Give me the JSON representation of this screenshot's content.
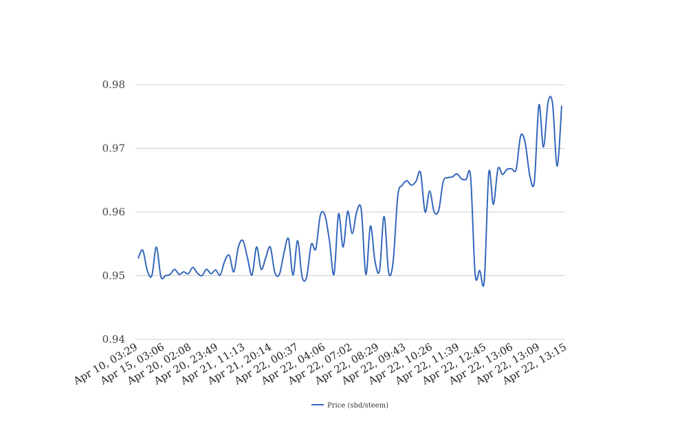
{
  "chart_data": {
    "type": "line",
    "title": "",
    "xlabel": "",
    "ylabel": "",
    "ylim": [
      0.94,
      0.98
    ],
    "yticks": [
      0.94,
      0.95,
      0.96,
      0.97,
      0.98
    ],
    "ytick_labels": [
      "0.94",
      "0.95",
      "0.96",
      "0.97",
      "0.98"
    ],
    "grid": "horizontal",
    "legend_position": "bottom-center",
    "x_tick_labels": [
      "Apr 10, 03:29",
      "Apr 15, 03:06",
      "Apr 20, 02:08",
      "Apr 20, 23:49",
      "Apr 21, 11:13",
      "Apr 21, 20:14",
      "Apr 22, 00:37",
      "Apr 22, 04:06",
      "Apr 22, 07:02",
      "Apr 22, 08:29",
      "Apr 22, 09:43",
      "Apr 22, 10:26",
      "Apr 22, 11:39",
      "Apr 22, 12:45",
      "Apr 22, 13:06",
      "Apr 22, 13:09",
      "Apr 22, 13:15"
    ],
    "series": [
      {
        "name": "Price (sbd/steem)",
        "color": "#3366bb",
        "values": [
          0.9527,
          0.954,
          0.9508,
          0.95,
          0.9545,
          0.9498,
          0.95,
          0.9502,
          0.951,
          0.9502,
          0.9506,
          0.9503,
          0.9513,
          0.9504,
          0.95,
          0.951,
          0.9503,
          0.9509,
          0.9501,
          0.9523,
          0.9532,
          0.9506,
          0.9545,
          0.9555,
          0.9528,
          0.9501,
          0.9545,
          0.951,
          0.9528,
          0.9545,
          0.9505,
          0.9502,
          0.9535,
          0.9558,
          0.9501,
          0.9555,
          0.9498,
          0.9498,
          0.9549,
          0.9542,
          0.9595,
          0.9595,
          0.9555,
          0.9502,
          0.9597,
          0.9545,
          0.9601,
          0.9566,
          0.9601,
          0.9603,
          0.9502,
          0.9578,
          0.9523,
          0.9508,
          0.9593,
          0.9505,
          0.9523,
          0.9625,
          0.9642,
          0.9649,
          0.9642,
          0.9648,
          0.9662,
          0.96,
          0.9633,
          0.96,
          0.9603,
          0.9648,
          0.9654,
          0.9655,
          0.966,
          0.9652,
          0.9651,
          0.9655,
          0.9502,
          0.9508,
          0.9492,
          0.9662,
          0.9612,
          0.9668,
          0.9659,
          0.9667,
          0.9668,
          0.9667,
          0.972,
          0.9708,
          0.9657,
          0.9648,
          0.9768,
          0.9702,
          0.9772,
          0.977,
          0.9672,
          0.9767
        ]
      }
    ]
  }
}
